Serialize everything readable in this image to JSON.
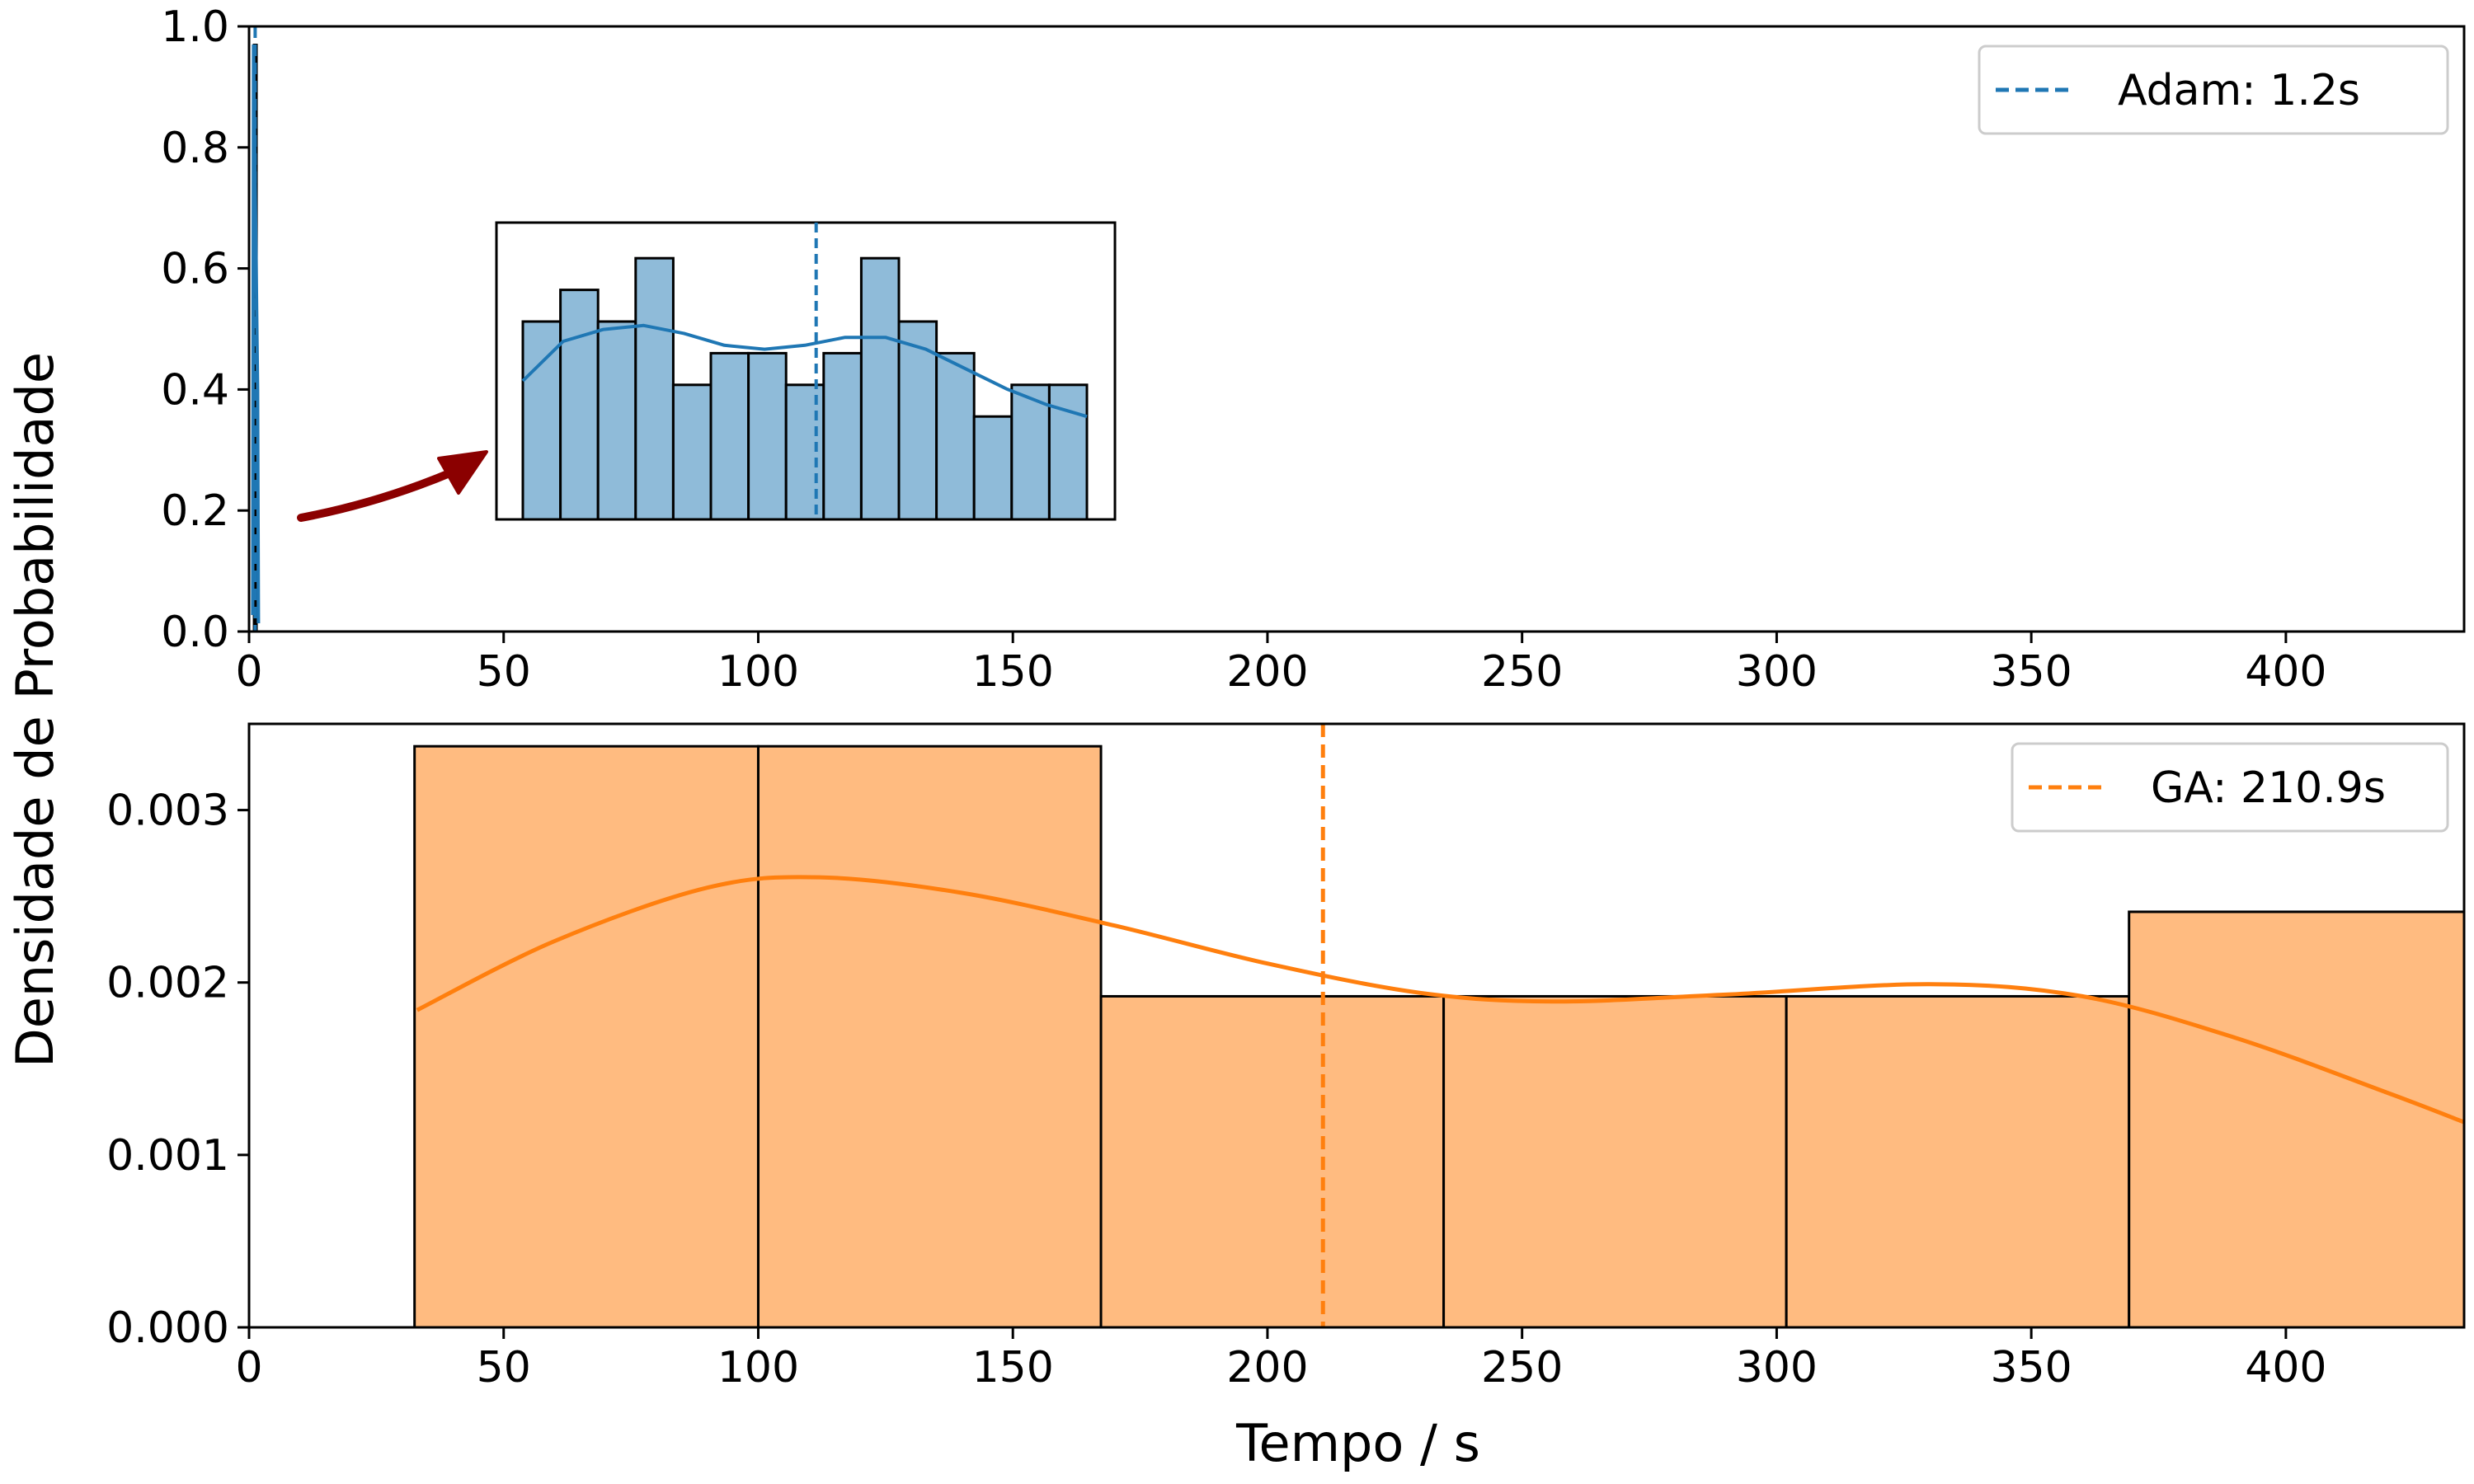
{
  "figure": {
    "ylabel": "Densidade de Probabilidade",
    "xlabel": "Tempo / s"
  },
  "chart_data": [
    {
      "type": "bar",
      "panel": "top",
      "title": "",
      "xlabel": "",
      "ylabel": "Densidade de Probabilidade",
      "xlim": [
        0,
        435
      ],
      "ylim": [
        0,
        1.0
      ],
      "xticks": [
        0,
        50,
        100,
        150,
        200,
        250,
        300,
        350,
        400
      ],
      "yticks": [
        0.0,
        0.2,
        0.4,
        0.6,
        0.8,
        1.0
      ],
      "ytick_labels": [
        "0.0",
        "0.2",
        "0.4",
        "0.6",
        "0.8",
        "1.0"
      ],
      "legend": {
        "placement": "top-right",
        "label": "Adam: 1.2s"
      },
      "mean_line": {
        "x": 1.2,
        "color": "#1f77b4",
        "style": "dashed"
      },
      "series": [
        {
          "name": "Adam",
          "color": "#1f77b4",
          "bin_edges": [
            0.9,
            1.5
          ],
          "density": [
            0.97
          ]
        }
      ],
      "grid": false
    },
    {
      "type": "bar",
      "panel": "inset",
      "title": "",
      "annotation": "arrow pointing from top panel distribution to zoomed inset",
      "arrow_color": "#8b0000",
      "fill": "#8fbbd9",
      "line_color": "#1f77b4",
      "bar_heights": [
        0.5,
        0.58,
        0.5,
        0.66,
        0.34,
        0.42,
        0.42,
        0.34,
        0.42,
        0.66,
        0.5,
        0.42,
        0.26,
        0.34,
        0.34
      ],
      "mean_position": 0.52,
      "kde": [
        0.35,
        0.45,
        0.48,
        0.49,
        0.47,
        0.44,
        0.43,
        0.44,
        0.46,
        0.46,
        0.43,
        0.38,
        0.33,
        0.29,
        0.26
      ],
      "ylim": [
        0,
        0.75
      ]
    },
    {
      "type": "bar",
      "panel": "bottom",
      "title": "",
      "xlabel": "Tempo / s",
      "ylabel": "Densidade de Probabilidade",
      "xlim": [
        0,
        435
      ],
      "ylim": [
        0,
        0.0035
      ],
      "xticks": [
        0,
        50,
        100,
        150,
        200,
        250,
        300,
        350,
        400
      ],
      "yticks": [
        0.0,
        0.001,
        0.002,
        0.003
      ],
      "ytick_labels": [
        "0.000",
        "0.001",
        "0.002",
        "0.003"
      ],
      "legend": {
        "placement": "top-right",
        "label": "GA: 210.9s"
      },
      "mean_line": {
        "x": 210.9,
        "color": "#ff7f0e",
        "style": "dashed"
      },
      "series": [
        {
          "name": "GA",
          "color": "#ff7f0e",
          "fill": "#ffbb80",
          "bin_edges": [
            32.5,
            100,
            167.3,
            234.6,
            301.9,
            369.2,
            436.5
          ],
          "density": [
            0.00337,
            0.00337,
            0.00192,
            0.00192,
            0.00192,
            0.00241
          ],
          "kde_x": [
            33,
            60,
            90,
            112,
            140,
            170,
            200,
            230,
            256,
            290,
            330,
            360,
            390,
            420,
            435
          ],
          "kde_y": [
            0.00184,
            0.00224,
            0.00255,
            0.00261,
            0.00252,
            0.00233,
            0.00211,
            0.00194,
            0.00189,
            0.00193,
            0.00199,
            0.00192,
            0.00168,
            0.00136,
            0.00119
          ]
        }
      ],
      "grid": false
    }
  ]
}
